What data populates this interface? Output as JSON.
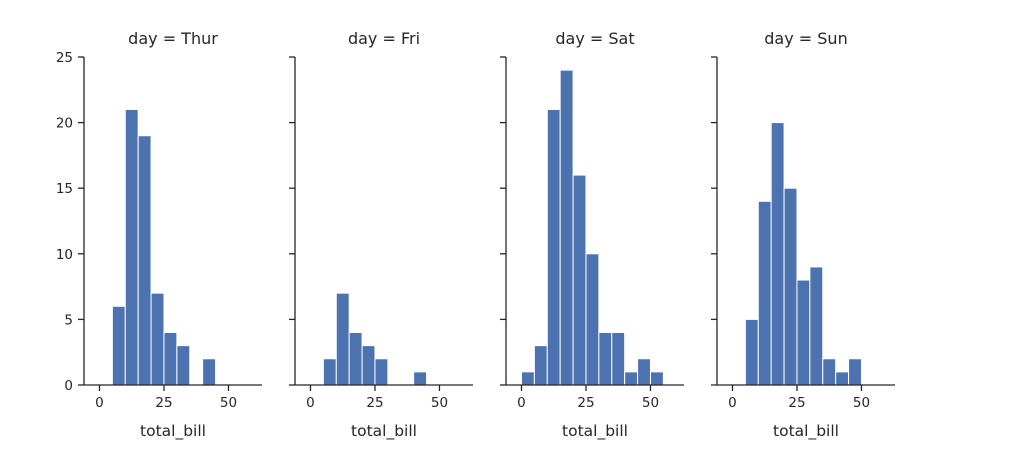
{
  "chart_data": [
    {
      "type": "bar",
      "title": "day = Thur",
      "xlabel": "total_bill",
      "ylabel": "",
      "ylim": [
        0,
        25
      ],
      "xlim": [
        -6,
        63
      ],
      "yticks": [
        0,
        5,
        10,
        15,
        20,
        25
      ],
      "xticks": [
        0,
        25,
        50
      ],
      "bins": [
        {
          "x0": 5,
          "x1": 10,
          "count": 6
        },
        {
          "x0": 10,
          "x1": 15,
          "count": 21
        },
        {
          "x0": 15,
          "x1": 20,
          "count": 19
        },
        {
          "x0": 20,
          "x1": 25,
          "count": 7
        },
        {
          "x0": 25,
          "x1": 30,
          "count": 4
        },
        {
          "x0": 30,
          "x1": 35,
          "count": 3
        },
        {
          "x0": 40,
          "x1": 45,
          "count": 2
        }
      ]
    },
    {
      "type": "bar",
      "title": "day = Fri",
      "xlabel": "total_bill",
      "ylabel": "",
      "ylim": [
        0,
        25
      ],
      "xlim": [
        -6,
        63
      ],
      "yticks": [
        0,
        5,
        10,
        15,
        20,
        25
      ],
      "xticks": [
        0,
        25,
        50
      ],
      "bins": [
        {
          "x0": 5,
          "x1": 10,
          "count": 2
        },
        {
          "x0": 10,
          "x1": 15,
          "count": 7
        },
        {
          "x0": 15,
          "x1": 20,
          "count": 4
        },
        {
          "x0": 20,
          "x1": 25,
          "count": 3
        },
        {
          "x0": 25,
          "x1": 30,
          "count": 2
        },
        {
          "x0": 40,
          "x1": 45,
          "count": 1
        }
      ]
    },
    {
      "type": "bar",
      "title": "day = Sat",
      "xlabel": "total_bill",
      "ylabel": "",
      "ylim": [
        0,
        25
      ],
      "xlim": [
        -6,
        63
      ],
      "yticks": [
        0,
        5,
        10,
        15,
        20,
        25
      ],
      "xticks": [
        0,
        25,
        50
      ],
      "bins": [
        {
          "x0": 0,
          "x1": 5,
          "count": 1
        },
        {
          "x0": 5,
          "x1": 10,
          "count": 3
        },
        {
          "x0": 10,
          "x1": 15,
          "count": 21
        },
        {
          "x0": 15,
          "x1": 20,
          "count": 24
        },
        {
          "x0": 20,
          "x1": 25,
          "count": 16
        },
        {
          "x0": 25,
          "x1": 30,
          "count": 10
        },
        {
          "x0": 30,
          "x1": 35,
          "count": 4
        },
        {
          "x0": 35,
          "x1": 40,
          "count": 4
        },
        {
          "x0": 40,
          "x1": 45,
          "count": 1
        },
        {
          "x0": 45,
          "x1": 50,
          "count": 2
        },
        {
          "x0": 50,
          "x1": 55,
          "count": 1
        }
      ]
    },
    {
      "type": "bar",
      "title": "day = Sun",
      "xlabel": "total_bill",
      "ylabel": "",
      "ylim": [
        0,
        25
      ],
      "xlim": [
        -6,
        63
      ],
      "yticks": [
        0,
        5,
        10,
        15,
        20,
        25
      ],
      "xticks": [
        0,
        25,
        50
      ],
      "bins": [
        {
          "x0": 5,
          "x1": 10,
          "count": 5
        },
        {
          "x0": 10,
          "x1": 15,
          "count": 14
        },
        {
          "x0": 15,
          "x1": 20,
          "count": 20
        },
        {
          "x0": 20,
          "x1": 25,
          "count": 15
        },
        {
          "x0": 25,
          "x1": 30,
          "count": 8
        },
        {
          "x0": 30,
          "x1": 35,
          "count": 9
        },
        {
          "x0": 35,
          "x1": 40,
          "count": 2
        },
        {
          "x0": 40,
          "x1": 45,
          "count": 1
        },
        {
          "x0": 45,
          "x1": 50,
          "count": 2
        }
      ]
    }
  ],
  "colors": {
    "bar_fill": "#4c72b0",
    "bar_edge": "#ffffff",
    "axis": "#262626"
  }
}
